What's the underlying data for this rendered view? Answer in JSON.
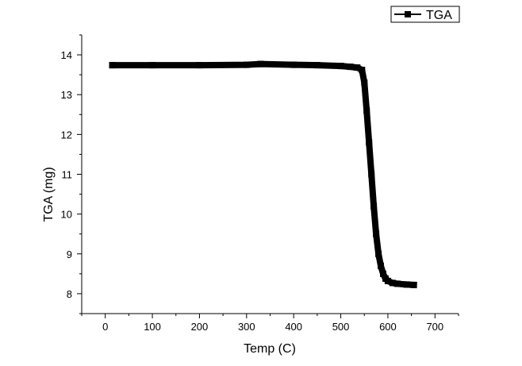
{
  "chart_data": {
    "type": "line",
    "title": "",
    "xlabel": "Temp (C)",
    "ylabel": "TGA (mg)",
    "xlim": [
      -50,
      750
    ],
    "ylim": [
      7.5,
      14.5
    ],
    "x_ticks": [
      0,
      100,
      200,
      300,
      400,
      500,
      600,
      700
    ],
    "y_ticks": [
      8,
      9,
      10,
      11,
      12,
      13,
      14
    ],
    "grid": false,
    "legend_position": "top-right",
    "series": [
      {
        "name": "TGA",
        "color": "#000000",
        "marker": "square",
        "x": [
          15,
          100,
          200,
          300,
          330,
          400,
          450,
          500,
          520,
          535,
          545,
          550,
          555,
          560,
          565,
          570,
          575,
          580,
          585,
          590,
          595,
          600,
          610,
          620,
          640,
          655
        ],
        "y": [
          13.74,
          13.74,
          13.74,
          13.75,
          13.77,
          13.75,
          13.74,
          13.72,
          13.7,
          13.68,
          13.62,
          13.3,
          12.6,
          11.8,
          11.0,
          10.2,
          9.5,
          9.0,
          8.7,
          8.5,
          8.38,
          8.32,
          8.27,
          8.25,
          8.23,
          8.22
        ]
      }
    ]
  }
}
